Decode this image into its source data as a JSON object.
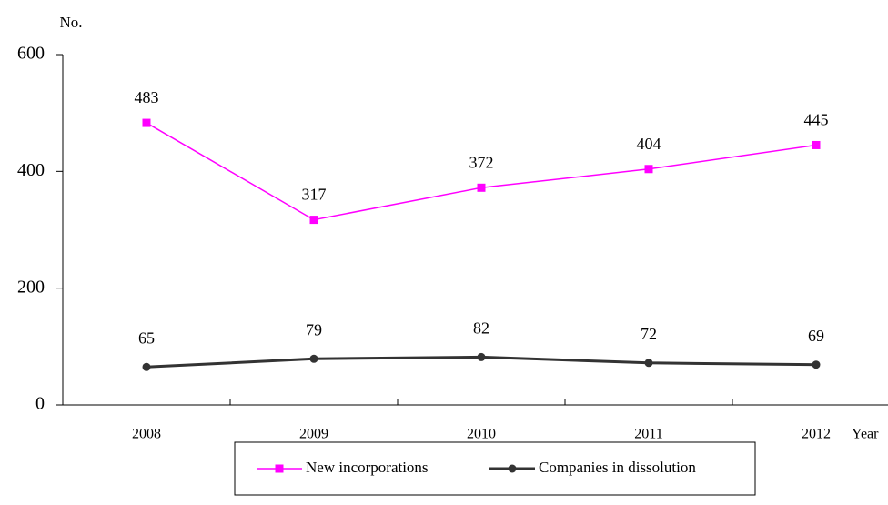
{
  "chart_data": {
    "type": "line",
    "y_label": "No.",
    "x_label": "Year",
    "categories": [
      "2008",
      "2009",
      "2010",
      "2011",
      "2012"
    ],
    "series": [
      {
        "name": "New incorporations",
        "color": "#ff00ff",
        "marker": "square",
        "values": [
          483,
          317,
          372,
          404,
          445
        ]
      },
      {
        "name": "Companies in dissolution",
        "color": "#333333",
        "marker": "circle",
        "values": [
          65,
          79,
          82,
          72,
          69
        ]
      }
    ],
    "ylim": [
      0,
      600
    ],
    "yticks": [
      0,
      200,
      400,
      600
    ],
    "grid": false,
    "legend": "bottom"
  }
}
